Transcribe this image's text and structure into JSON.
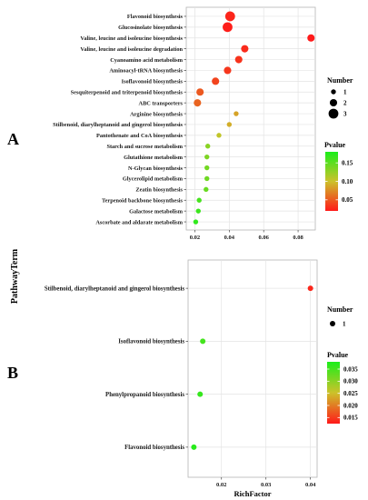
{
  "panel_labels": {
    "a": "A",
    "b": "B"
  },
  "shared_ylabel": "PathwayTerm",
  "chart_data": [
    {
      "type": "scatter",
      "panel": "A",
      "xlabel": "",
      "ylabel": "PathwayTerm",
      "xlim": [
        0.015,
        0.09
      ],
      "xticks": [
        0.02,
        0.04,
        0.06,
        0.08
      ],
      "xtick_labels": [
        "0.02",
        "0.04",
        "0.06",
        "0.08"
      ],
      "grid": true,
      "legend_position": "right",
      "size_legend": {
        "title": "Number",
        "values": [
          1,
          2,
          3
        ],
        "labels": [
          "1",
          "2",
          "3"
        ]
      },
      "color_legend": {
        "title": "Pvalue",
        "range": [
          0.02,
          0.18
        ],
        "ticks": [
          0.15,
          0.1,
          0.05
        ],
        "tick_labels": [
          "0.15",
          "0.10",
          "0.05"
        ],
        "low_color": "#ff1a1a",
        "mid_color": "#ccc22a",
        "high_color": "#1aee1a"
      },
      "points": [
        {
          "term": "Flavonoid biosynthesis",
          "x": 0.0405,
          "number": 3,
          "pvalue": 0.025
        },
        {
          "term": "Glucosinolate biosynthesis",
          "x": 0.039,
          "number": 3,
          "pvalue": 0.022
        },
        {
          "term": "Valine, leucine and isoleucine biosynthesis",
          "x": 0.0875,
          "number": 2,
          "pvalue": 0.02
        },
        {
          "term": "Valine, leucine and isoleucine degradation",
          "x": 0.049,
          "number": 2,
          "pvalue": 0.028
        },
        {
          "term": "Cyanoamino acid metabolism",
          "x": 0.0455,
          "number": 2,
          "pvalue": 0.032
        },
        {
          "term": "Aminoacyl-tRNA biosynthesis",
          "x": 0.039,
          "number": 2,
          "pvalue": 0.034
        },
        {
          "term": "Isoflavonoid biosynthesis",
          "x": 0.032,
          "number": 2,
          "pvalue": 0.04
        },
        {
          "term": "Sesquiterpenoid and triterpenoid biosynthesis",
          "x": 0.023,
          "number": 2,
          "pvalue": 0.05
        },
        {
          "term": "ABC transporters",
          "x": 0.0215,
          "number": 2,
          "pvalue": 0.055
        },
        {
          "term": "Arginine biosynthesis",
          "x": 0.044,
          "number": 1,
          "pvalue": 0.085
        },
        {
          "term": "Stilbenoid, diarylheptanoid and gingerol biosynthesis",
          "x": 0.04,
          "number": 1,
          "pvalue": 0.09
        },
        {
          "term": "Pantothenate and CoA biosynthesis",
          "x": 0.034,
          "number": 1,
          "pvalue": 0.105
        },
        {
          "term": "Starch and sucrose metabolism",
          "x": 0.0275,
          "number": 1,
          "pvalue": 0.13
        },
        {
          "term": "Glutathione metabolism",
          "x": 0.027,
          "number": 1,
          "pvalue": 0.135
        },
        {
          "term": "N-Glycan biosynthesis",
          "x": 0.027,
          "number": 1,
          "pvalue": 0.14
        },
        {
          "term": "Glycerolipid metabolism",
          "x": 0.027,
          "number": 1,
          "pvalue": 0.142
        },
        {
          "term": "Zeatin biosynthesis",
          "x": 0.0265,
          "number": 1,
          "pvalue": 0.145
        },
        {
          "term": "Terpenoid backbone biosynthesis",
          "x": 0.0225,
          "number": 1,
          "pvalue": 0.16
        },
        {
          "term": "Galactose metabolism",
          "x": 0.022,
          "number": 1,
          "pvalue": 0.165
        },
        {
          "term": "Ascorbate and aldarate metabolism",
          "x": 0.0205,
          "number": 1,
          "pvalue": 0.17
        }
      ]
    },
    {
      "type": "scatter",
      "panel": "B",
      "xlabel": "RichFactor",
      "ylabel": "PathwayTerm",
      "xlim": [
        0.0125,
        0.0415
      ],
      "xticks": [
        0.02,
        0.03,
        0.04
      ],
      "xtick_labels": [
        "0.02",
        "0.03",
        "0.04"
      ],
      "grid": true,
      "legend_position": "right",
      "size_legend": {
        "title": "Number",
        "values": [
          1
        ],
        "labels": [
          "1"
        ]
      },
      "color_legend": {
        "title": "Pvalue",
        "range": [
          0.0125,
          0.038
        ],
        "ticks": [
          0.035,
          0.03,
          0.025,
          0.02,
          0.015
        ],
        "tick_labels": [
          "0.035",
          "0.030",
          "0.025",
          "0.020",
          "0.015"
        ],
        "low_color": "#ff1a1a",
        "mid_color": "#ccc22a",
        "high_color": "#1aee1a"
      },
      "points": [
        {
          "term": "Stilbenoid, diarylheptanoid and gingerol biosynthesis",
          "x": 0.04,
          "number": 1,
          "pvalue": 0.0135
        },
        {
          "term": "Isoflavonoid biosynthesis",
          "x": 0.0158,
          "number": 1,
          "pvalue": 0.035
        },
        {
          "term": "Phenylpropanoid biosynthesis",
          "x": 0.0152,
          "number": 1,
          "pvalue": 0.036
        },
        {
          "term": "Flavonoid biosynthesis",
          "x": 0.0138,
          "number": 1,
          "pvalue": 0.037
        }
      ]
    }
  ]
}
